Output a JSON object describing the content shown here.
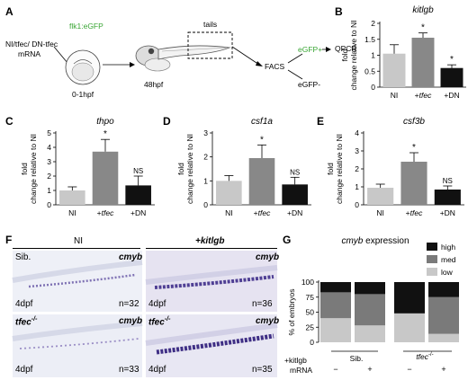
{
  "panels": {
    "A": {
      "label": "A",
      "injection": [
        "NI/tfec/ DN-tfec",
        "mRNA"
      ],
      "reporter": "flk1:eGFP",
      "stage1": "0-1hpf",
      "stage2": "48hpf",
      "tails": "tails",
      "facs": "FACS",
      "pos": "eGFP+",
      "neg": "eGFP-",
      "qpcr": "QPCR"
    },
    "B": {
      "label": "B"
    },
    "C": {
      "label": "C"
    },
    "D": {
      "label": "D"
    },
    "E": {
      "label": "E"
    },
    "F": {
      "label": "F",
      "col_ni": "NI",
      "col_kitlgb": "+kitlgb",
      "images": [
        {
          "genotype": "Sib.",
          "marker": "cmyb",
          "stage": "4dpf",
          "n": "n=32"
        },
        {
          "genotype": "",
          "marker": "cmyb",
          "stage": "4dpf",
          "n": "n=36"
        },
        {
          "genotype": "tfec",
          "genotype_sup": "-/-",
          "marker": "cmyb",
          "stage": "4dpf",
          "n": "n=33"
        },
        {
          "genotype": "tfec",
          "genotype_sup": "-/-",
          "marker": "cmyb",
          "stage": "4dpf",
          "n": "n=35"
        }
      ]
    },
    "G": {
      "label": "G"
    }
  },
  "chart_data": [
    {
      "panel": "B",
      "type": "bar",
      "title": "kitlgb",
      "ylabel": [
        "fold",
        "change relative to NI"
      ],
      "categories": [
        "NI",
        "+tfec",
        "+DN"
      ],
      "values": [
        1.05,
        1.55,
        0.6
      ],
      "errors": [
        0.28,
        0.15,
        0.1
      ],
      "significance": [
        "",
        "*",
        "*"
      ],
      "colors": [
        "#c8c8c8",
        "#888888",
        "#111111"
      ],
      "ylim": [
        0,
        2
      ],
      "yticks": [
        0,
        0.5,
        1,
        1.5,
        2
      ]
    },
    {
      "panel": "C",
      "type": "bar",
      "title": "thpo",
      "ylabel": [
        "fold",
        "change relative to NI"
      ],
      "categories": [
        "NI",
        "+tfec",
        "+DN"
      ],
      "values": [
        1.0,
        3.7,
        1.35
      ],
      "errors": [
        0.25,
        0.85,
        0.65
      ],
      "significance": [
        "",
        "*",
        "NS"
      ],
      "colors": [
        "#c8c8c8",
        "#888888",
        "#111111"
      ],
      "ylim": [
        0,
        5
      ],
      "yticks": [
        0,
        1,
        2,
        3,
        4,
        5
      ]
    },
    {
      "panel": "D",
      "type": "bar",
      "title": "csf1a",
      "ylabel": [
        "fold",
        "change relative to NI"
      ],
      "categories": [
        "NI",
        "+tfec",
        "+DN"
      ],
      "values": [
        1.0,
        1.95,
        0.85
      ],
      "errors": [
        0.22,
        0.55,
        0.3
      ],
      "significance": [
        "",
        "*",
        "NS"
      ],
      "colors": [
        "#c8c8c8",
        "#888888",
        "#111111"
      ],
      "ylim": [
        0,
        3
      ],
      "yticks": [
        0,
        1,
        2,
        3
      ]
    },
    {
      "panel": "E",
      "type": "bar",
      "title": "csf3b",
      "ylabel": [
        "fold",
        "change relative to NI"
      ],
      "categories": [
        "NI",
        "+tfec",
        "+DN"
      ],
      "values": [
        0.95,
        2.4,
        0.85
      ],
      "errors": [
        0.2,
        0.5,
        0.2
      ],
      "significance": [
        "",
        "*",
        "NS"
      ],
      "colors": [
        "#c8c8c8",
        "#888888",
        "#111111"
      ],
      "ylim": [
        0,
        4
      ],
      "yticks": [
        0,
        1,
        2,
        3,
        4
      ]
    },
    {
      "panel": "G",
      "type": "bar",
      "stacked": true,
      "title": "cmyb expression",
      "ylabel": "% of embryos",
      "ylim": [
        0,
        100
      ],
      "yticks": [
        0,
        25,
        50,
        75,
        100
      ],
      "groups": [
        "Sib.",
        "tfec"
      ],
      "group_sup": [
        "",
        "-/-"
      ],
      "row_labels": [
        "+kitlgb",
        "mRNA"
      ],
      "signs": [
        "−",
        "+",
        "−",
        "+"
      ],
      "legend": [
        "high",
        "med",
        "low"
      ],
      "colors": {
        "high": "#111111",
        "med": "#7a7a7a",
        "low": "#c8c8c8"
      },
      "series": [
        {
          "name": "low",
          "values": [
            40,
            28,
            48,
            14
          ]
        },
        {
          "name": "med",
          "values": [
            43,
            52,
            0,
            61
          ]
        },
        {
          "name": "high",
          "values": [
            17,
            20,
            52,
            25
          ]
        }
      ]
    }
  ]
}
